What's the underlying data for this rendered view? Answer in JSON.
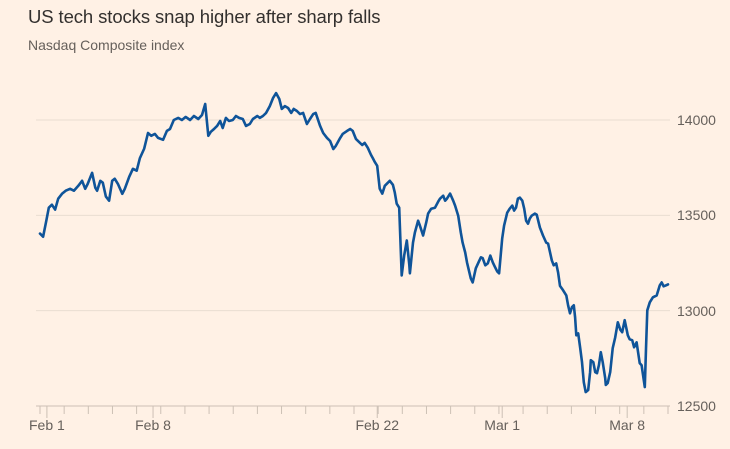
{
  "page": {
    "background": "#FFF1E5"
  },
  "chart_data": {
    "type": "line",
    "title": "US tech stocks snap higher after sharp falls",
    "subtitle": "Nasdaq Composite index",
    "series_name": "Nasdaq Composite index",
    "line_color": "#0F5499",
    "grid": true,
    "legend_position": "none",
    "y_axis": {
      "side": "right",
      "ticks": [
        12500,
        13000,
        13500,
        14000
      ],
      "range": [
        12500,
        14200
      ]
    },
    "x_axis": {
      "minor_tick_count": 27,
      "labels": [
        {
          "label": "Feb 1",
          "f": 0.011
        },
        {
          "label": "Feb 8",
          "f": 0.18
        },
        {
          "label": "Feb 22",
          "f": 0.537
        },
        {
          "label": "Mar 1",
          "f": 0.736
        },
        {
          "label": "Mar 8",
          "f": 0.935
        }
      ]
    },
    "points": [
      [
        0.0,
        13404
      ],
      [
        0.005,
        13388
      ],
      [
        0.01,
        13472
      ],
      [
        0.014,
        13540
      ],
      [
        0.019,
        13556
      ],
      [
        0.024,
        13530
      ],
      [
        0.029,
        13587
      ],
      [
        0.035,
        13613
      ],
      [
        0.041,
        13629
      ],
      [
        0.048,
        13639
      ],
      [
        0.054,
        13629
      ],
      [
        0.061,
        13655
      ],
      [
        0.067,
        13681
      ],
      [
        0.072,
        13639
      ],
      [
        0.076,
        13665
      ],
      [
        0.083,
        13723
      ],
      [
        0.088,
        13645
      ],
      [
        0.091,
        13629
      ],
      [
        0.096,
        13681
      ],
      [
        0.1,
        13671
      ],
      [
        0.105,
        13598
      ],
      [
        0.11,
        13577
      ],
      [
        0.115,
        13681
      ],
      [
        0.119,
        13692
      ],
      [
        0.124,
        13665
      ],
      [
        0.131,
        13613
      ],
      [
        0.135,
        13639
      ],
      [
        0.142,
        13702
      ],
      [
        0.148,
        13744
      ],
      [
        0.154,
        13734
      ],
      [
        0.159,
        13800
      ],
      [
        0.166,
        13850
      ],
      [
        0.172,
        13932
      ],
      [
        0.177,
        13917
      ],
      [
        0.183,
        13927
      ],
      [
        0.188,
        13906
      ],
      [
        0.196,
        13896
      ],
      [
        0.202,
        13943
      ],
      [
        0.207,
        13953
      ],
      [
        0.213,
        14000
      ],
      [
        0.22,
        14011
      ],
      [
        0.226,
        14000
      ],
      [
        0.232,
        14016
      ],
      [
        0.239,
        14000
      ],
      [
        0.245,
        14021
      ],
      [
        0.252,
        14005
      ],
      [
        0.258,
        14026
      ],
      [
        0.263,
        14084
      ],
      [
        0.268,
        13917
      ],
      [
        0.272,
        13938
      ],
      [
        0.277,
        13953
      ],
      [
        0.282,
        13969
      ],
      [
        0.287,
        13995
      ],
      [
        0.291,
        13958
      ],
      [
        0.296,
        14011
      ],
      [
        0.301,
        13995
      ],
      [
        0.307,
        14000
      ],
      [
        0.312,
        14021
      ],
      [
        0.317,
        14011
      ],
      [
        0.323,
        14005
      ],
      [
        0.328,
        13969
      ],
      [
        0.334,
        13979
      ],
      [
        0.339,
        14005
      ],
      [
        0.346,
        14021
      ],
      [
        0.35,
        14011
      ],
      [
        0.355,
        14021
      ],
      [
        0.36,
        14037
      ],
      [
        0.366,
        14073
      ],
      [
        0.371,
        14115
      ],
      [
        0.376,
        14141
      ],
      [
        0.381,
        14110
      ],
      [
        0.385,
        14058
      ],
      [
        0.39,
        14073
      ],
      [
        0.395,
        14063
      ],
      [
        0.4,
        14037
      ],
      [
        0.404,
        14058
      ],
      [
        0.409,
        14047
      ],
      [
        0.414,
        14031
      ],
      [
        0.419,
        14037
      ],
      [
        0.425,
        13979
      ],
      [
        0.43,
        14005
      ],
      [
        0.435,
        14031
      ],
      [
        0.439,
        14037
      ],
      [
        0.446,
        13969
      ],
      [
        0.451,
        13932
      ],
      [
        0.457,
        13906
      ],
      [
        0.462,
        13890
      ],
      [
        0.467,
        13848
      ],
      [
        0.471,
        13864
      ],
      [
        0.478,
        13906
      ],
      [
        0.482,
        13927
      ],
      [
        0.489,
        13943
      ],
      [
        0.494,
        13953
      ],
      [
        0.498,
        13943
      ],
      [
        0.503,
        13901
      ],
      [
        0.508,
        13885
      ],
      [
        0.513,
        13869
      ],
      [
        0.517,
        13880
      ],
      [
        0.522,
        13854
      ],
      [
        0.527,
        13817
      ],
      [
        0.53,
        13800
      ],
      [
        0.533,
        13781
      ],
      [
        0.537,
        13760
      ],
      [
        0.541,
        13640
      ],
      [
        0.545,
        13614
      ],
      [
        0.549,
        13655
      ],
      [
        0.554,
        13671
      ],
      [
        0.557,
        13681
      ],
      [
        0.562,
        13660
      ],
      [
        0.565,
        13619
      ],
      [
        0.568,
        13561
      ],
      [
        0.572,
        13540
      ],
      [
        0.576,
        13185
      ],
      [
        0.58,
        13290
      ],
      [
        0.584,
        13368
      ],
      [
        0.588,
        13240
      ],
      [
        0.589,
        13196
      ],
      [
        0.594,
        13357
      ],
      [
        0.597,
        13410
      ],
      [
        0.602,
        13472
      ],
      [
        0.605,
        13446
      ],
      [
        0.61,
        13394
      ],
      [
        0.615,
        13462
      ],
      [
        0.618,
        13509
      ],
      [
        0.623,
        13535
      ],
      [
        0.629,
        13540
      ],
      [
        0.634,
        13572
      ],
      [
        0.637,
        13587
      ],
      [
        0.642,
        13603
      ],
      [
        0.645,
        13577
      ],
      [
        0.648,
        13587
      ],
      [
        0.653,
        13614
      ],
      [
        0.658,
        13577
      ],
      [
        0.661,
        13551
      ],
      [
        0.666,
        13498
      ],
      [
        0.67,
        13410
      ],
      [
        0.673,
        13357
      ],
      [
        0.677,
        13305
      ],
      [
        0.68,
        13253
      ],
      [
        0.686,
        13169
      ],
      [
        0.689,
        13148
      ],
      [
        0.694,
        13222
      ],
      [
        0.699,
        13259
      ],
      [
        0.702,
        13280
      ],
      [
        0.705,
        13275
      ],
      [
        0.709,
        13238
      ],
      [
        0.713,
        13248
      ],
      [
        0.717,
        13289
      ],
      [
        0.721,
        13253
      ],
      [
        0.724,
        13232
      ],
      [
        0.728,
        13206
      ],
      [
        0.731,
        13196
      ],
      [
        0.736,
        13379
      ],
      [
        0.739,
        13446
      ],
      [
        0.744,
        13514
      ],
      [
        0.748,
        13535
      ],
      [
        0.752,
        13551
      ],
      [
        0.755,
        13525
      ],
      [
        0.758,
        13540
      ],
      [
        0.761,
        13588
      ],
      [
        0.764,
        13593
      ],
      [
        0.768,
        13577
      ],
      [
        0.771,
        13535
      ],
      [
        0.774,
        13472
      ],
      [
        0.777,
        13456
      ],
      [
        0.78,
        13483
      ],
      [
        0.783,
        13498
      ],
      [
        0.788,
        13509
      ],
      [
        0.791,
        13504
      ],
      [
        0.796,
        13436
      ],
      [
        0.801,
        13394
      ],
      [
        0.806,
        13357
      ],
      [
        0.809,
        13352
      ],
      [
        0.815,
        13264
      ],
      [
        0.818,
        13238
      ],
      [
        0.822,
        13248
      ],
      [
        0.825,
        13200
      ],
      [
        0.828,
        13130
      ],
      [
        0.833,
        13107
      ],
      [
        0.838,
        13080
      ],
      [
        0.841,
        13028
      ],
      [
        0.844,
        12986
      ],
      [
        0.847,
        13018
      ],
      [
        0.85,
        13028
      ],
      [
        0.852,
        12965
      ],
      [
        0.854,
        12871
      ],
      [
        0.857,
        12881
      ],
      [
        0.86,
        12808
      ],
      [
        0.863,
        12730
      ],
      [
        0.866,
        12625
      ],
      [
        0.869,
        12573
      ],
      [
        0.873,
        12584
      ],
      [
        0.876,
        12678
      ],
      [
        0.877,
        12740
      ],
      [
        0.881,
        12730
      ],
      [
        0.884,
        12678
      ],
      [
        0.887,
        12672
      ],
      [
        0.89,
        12714
      ],
      [
        0.893,
        12782
      ],
      [
        0.896,
        12730
      ],
      [
        0.9,
        12646
      ],
      [
        0.901,
        12610
      ],
      [
        0.904,
        12620
      ],
      [
        0.908,
        12678
      ],
      [
        0.912,
        12803
      ],
      [
        0.916,
        12860
      ],
      [
        0.92,
        12939
      ],
      [
        0.924,
        12900
      ],
      [
        0.927,
        12887
      ],
      [
        0.931,
        12950
      ],
      [
        0.936,
        12871
      ],
      [
        0.939,
        12850
      ],
      [
        0.943,
        12845
      ],
      [
        0.946,
        12808
      ],
      [
        0.95,
        12834
      ],
      [
        0.955,
        12725
      ],
      [
        0.958,
        12714
      ],
      [
        0.963,
        12599
      ],
      [
        0.965,
        12800
      ],
      [
        0.967,
        13002
      ],
      [
        0.971,
        13044
      ],
      [
        0.976,
        13070
      ],
      [
        0.982,
        13080
      ],
      [
        0.987,
        13133
      ],
      [
        0.99,
        13148
      ],
      [
        0.993,
        13128
      ],
      [
        0.997,
        13133
      ],
      [
        1.0,
        13138
      ]
    ],
    "colors": {
      "background": "#FFF1E5",
      "title_text": "#33302E",
      "muted_text": "#66605B",
      "gridline": "#EADDD1",
      "axis": "#CCC0B5",
      "line": "#0F5499"
    }
  }
}
